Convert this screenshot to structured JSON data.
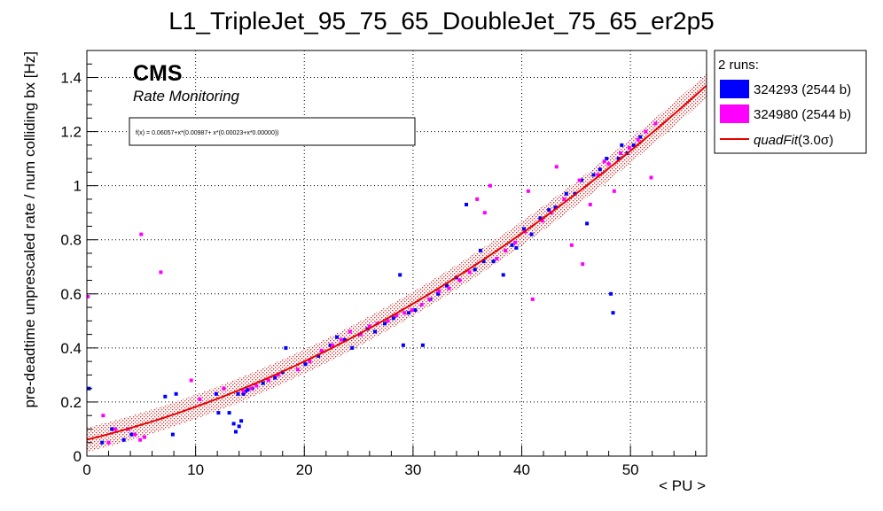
{
  "chart_data": {
    "type": "scatter",
    "title": "L1_TripleJet_95_75_65_DoubleJet_75_65_er2p5",
    "xlabel": "< PU >",
    "ylabel": "pre-deadtime unprescaled rate / num colliding bx [Hz]",
    "xlim": [
      0,
      57
    ],
    "ylim": [
      0,
      1.5
    ],
    "x_ticks": [
      0,
      10,
      20,
      30,
      40,
      50
    ],
    "y_ticks": [
      0,
      0.2,
      0.4,
      0.6,
      0.8,
      1,
      1.2,
      1.4
    ],
    "x_tick_labels": [
      "0",
      "10",
      "20",
      "30",
      "40",
      "50"
    ],
    "y_tick_labels": [
      "0",
      "0.2",
      "0.4",
      "0.6",
      "0.8",
      "1",
      "1.2",
      "1.4"
    ],
    "grid": true,
    "legend_position": "right-outside-top",
    "legend_header": "2 runs:",
    "annotations": {
      "brand": "CMS",
      "subtitle": "Rate Monitoring",
      "fit_formula": "f(x) = 0.06057+x*(0.00987+ x*(0.00023+x*0.00000))"
    },
    "fit": {
      "name": "quadFit",
      "label_suffix": "(3.0σ)",
      "coefficients": [
        0.06057,
        0.00987,
        0.00023
      ],
      "band_half_width": 0.045,
      "color": "#e60000"
    },
    "series": [
      {
        "name": "324293 (2544 b)",
        "color": "#0000ff",
        "x": [
          0.2,
          1.4,
          2.3,
          3.4,
          4.1,
          7.2,
          7.9,
          8.2,
          11.9,
          12.1,
          13.1,
          13.5,
          13.7,
          13.9,
          14.0,
          14.2,
          14.4,
          14.6,
          14.8,
          15.2,
          16.2,
          17.3,
          18.0,
          18.3,
          20.1,
          21.3,
          22.4,
          23.0,
          23.7,
          24.4,
          25.1,
          25.8,
          26.5,
          27.4,
          28.2,
          28.8,
          29.1,
          29.6,
          30.2,
          30.9,
          31.6,
          32.3,
          33.1,
          34.0,
          34.9,
          35.7,
          36.2,
          36.5,
          37.4,
          38.3,
          39.1,
          39.5,
          40.2,
          40.9,
          41.7,
          42.5,
          43.1,
          44.1,
          44.9,
          45.5,
          46.0,
          46.6,
          47.2,
          47.8,
          48.2,
          48.4,
          48.9,
          49.2,
          49.7,
          50.3,
          50.9
        ],
        "y": [
          0.25,
          0.05,
          0.1,
          0.06,
          0.08,
          0.22,
          0.08,
          0.23,
          0.23,
          0.16,
          0.16,
          0.12,
          0.09,
          0.23,
          0.11,
          0.13,
          0.23,
          0.24,
          0.245,
          0.25,
          0.27,
          0.29,
          0.31,
          0.4,
          0.34,
          0.37,
          0.41,
          0.44,
          0.43,
          0.4,
          0.45,
          0.47,
          0.46,
          0.49,
          0.51,
          0.67,
          0.41,
          0.53,
          0.54,
          0.41,
          0.58,
          0.6,
          0.63,
          0.66,
          0.93,
          0.69,
          0.76,
          0.72,
          0.72,
          0.67,
          0.78,
          0.77,
          0.84,
          0.82,
          0.88,
          0.91,
          0.92,
          0.97,
          0.97,
          1.02,
          0.86,
          1.04,
          1.06,
          1.1,
          0.6,
          0.53,
          1.1,
          1.15,
          1.12,
          1.15,
          1.18
        ]
      },
      {
        "name": "324980 (2544 b)",
        "color": "#ff00ff",
        "x": [
          0.1,
          1.5,
          2.0,
          2.6,
          3.8,
          4.4,
          4.9,
          5.0,
          5.3,
          6.8,
          9.6,
          10.4,
          12.6,
          14.4,
          15.1,
          15.6,
          16.7,
          17.6,
          19.4,
          20.5,
          21.6,
          22.6,
          23.4,
          24.2,
          25.2,
          26.0,
          26.7,
          27.7,
          28.5,
          29.2,
          29.9,
          30.8,
          31.5,
          32.4,
          33.3,
          34.3,
          35.2,
          35.9,
          36.6,
          37.1,
          37.7,
          38.5,
          39.4,
          40.3,
          40.6,
          41.0,
          41.9,
          42.7,
          43.2,
          43.9,
          44.6,
          45.3,
          45.6,
          46.3,
          47.0,
          47.6,
          48.0,
          48.5,
          49.1,
          49.9,
          50.7,
          51.4,
          51.9,
          52.3
        ],
        "y": [
          0.59,
          0.15,
          0.05,
          0.1,
          0.1,
          0.08,
          0.06,
          0.82,
          0.07,
          0.68,
          0.28,
          0.21,
          0.25,
          0.24,
          0.25,
          0.26,
          0.28,
          0.3,
          0.32,
          0.35,
          0.39,
          0.41,
          0.43,
          0.46,
          0.45,
          0.48,
          0.49,
          0.5,
          0.52,
          0.53,
          0.54,
          0.56,
          0.58,
          0.61,
          0.62,
          0.65,
          0.68,
          0.95,
          0.9,
          1.0,
          0.73,
          0.76,
          0.79,
          0.83,
          0.98,
          0.58,
          0.87,
          0.9,
          1.07,
          0.95,
          0.78,
          1.02,
          0.71,
          0.93,
          1.04,
          1.09,
          1.08,
          0.98,
          1.12,
          1.14,
          1.17,
          1.2,
          1.03,
          1.23
        ]
      }
    ]
  }
}
